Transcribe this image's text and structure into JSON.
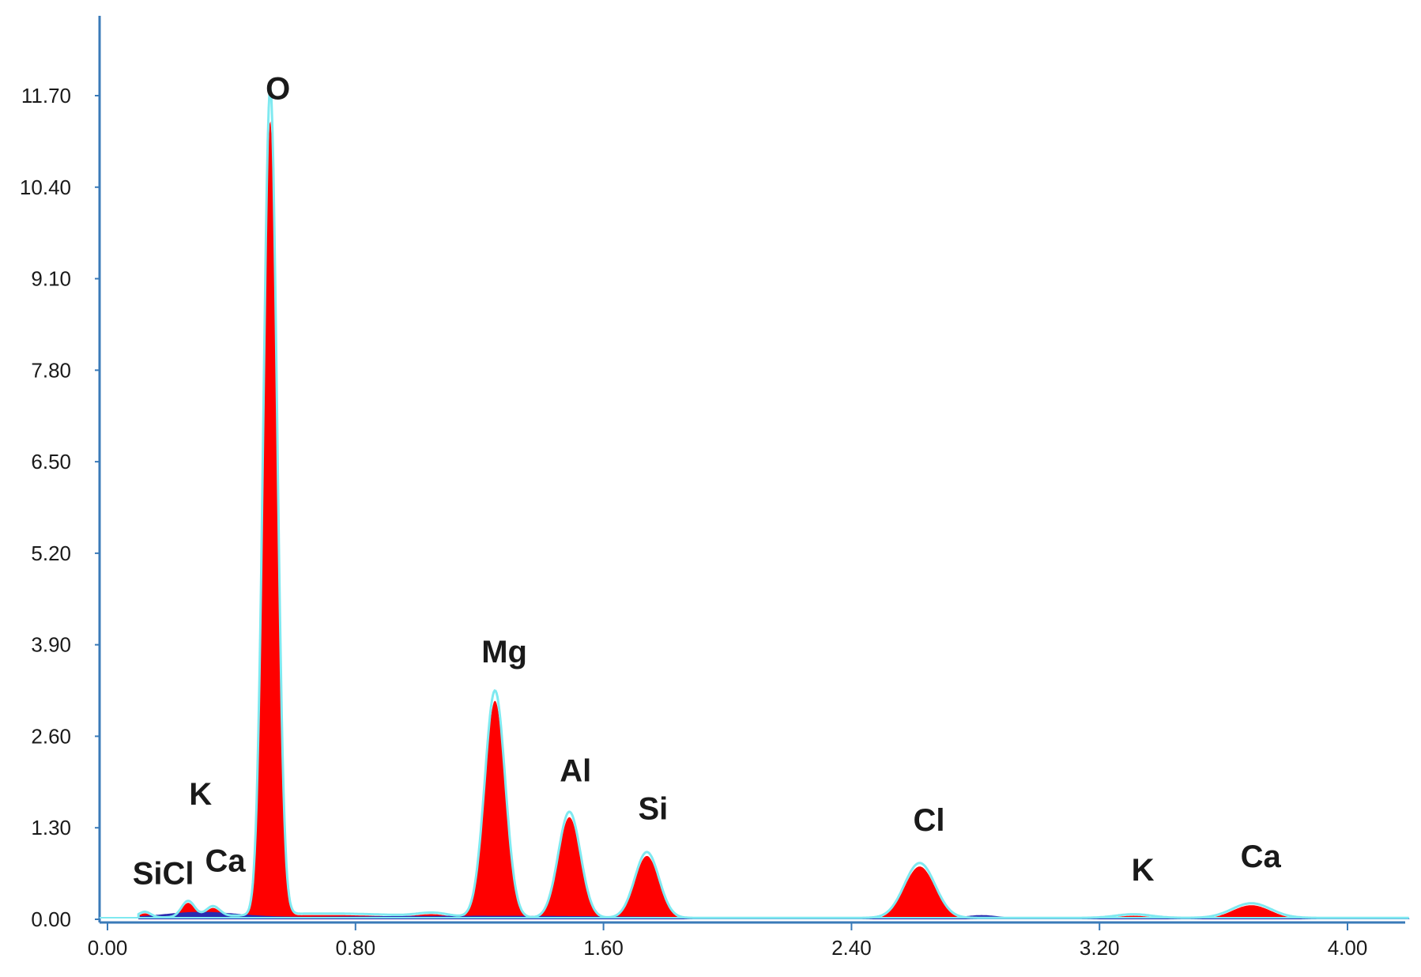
{
  "chart_data": {
    "type": "area",
    "title": "",
    "xlabel": "",
    "ylabel": "",
    "xlim": [
      0.0,
      4.2
    ],
    "ylim": [
      0.0,
      13.0
    ],
    "x_ticks": [
      "0.00",
      "0.80",
      "1.60",
      "2.40",
      "3.20",
      "4.00"
    ],
    "y_ticks": [
      "0.00",
      "1.30",
      "2.60",
      "3.90",
      "5.20",
      "6.50",
      "7.80",
      "9.10",
      "10.40",
      "11.70"
    ],
    "grid": false,
    "colors": {
      "fill": "#ff0000",
      "background_fill": "#2a2ab0",
      "overlay_line": "#7fe9f0",
      "axis": "#3a7ab8"
    },
    "peaks": [
      {
        "label": "SiCl",
        "x": 0.12,
        "height": 0.08
      },
      {
        "label": "K",
        "x": 0.26,
        "height": 0.22
      },
      {
        "label": "Ca",
        "x": 0.34,
        "height": 0.14
      },
      {
        "label": "O",
        "x": 0.525,
        "height": 11.3
      },
      {
        "label": "Mg",
        "x": 1.25,
        "height": 3.1
      },
      {
        "label": "Al",
        "x": 1.49,
        "height": 1.45
      },
      {
        "label": "Si",
        "x": 1.74,
        "height": 0.9
      },
      {
        "label": "Cl",
        "x": 2.62,
        "height": 0.75
      },
      {
        "label": "K",
        "x": 3.31,
        "height": 0.05
      },
      {
        "label": "Ca",
        "x": 3.69,
        "height": 0.2
      }
    ],
    "labels": [
      {
        "text": "O",
        "x": 0.55,
        "y": 11.65
      },
      {
        "text": "Mg",
        "x": 1.28,
        "y": 3.65
      },
      {
        "text": "Al",
        "x": 1.51,
        "y": 1.96
      },
      {
        "text": "Si",
        "x": 1.76,
        "y": 1.42
      },
      {
        "text": "Cl",
        "x": 2.65,
        "y": 1.26
      },
      {
        "text": "K",
        "x": 0.3,
        "y": 1.63
      },
      {
        "text": "Ca",
        "x": 0.38,
        "y": 0.68
      },
      {
        "text": "SiCl",
        "x": 0.18,
        "y": 0.5
      },
      {
        "text": "K",
        "x": 3.34,
        "y": 0.55
      },
      {
        "text": "Ca",
        "x": 3.72,
        "y": 0.74
      }
    ]
  }
}
